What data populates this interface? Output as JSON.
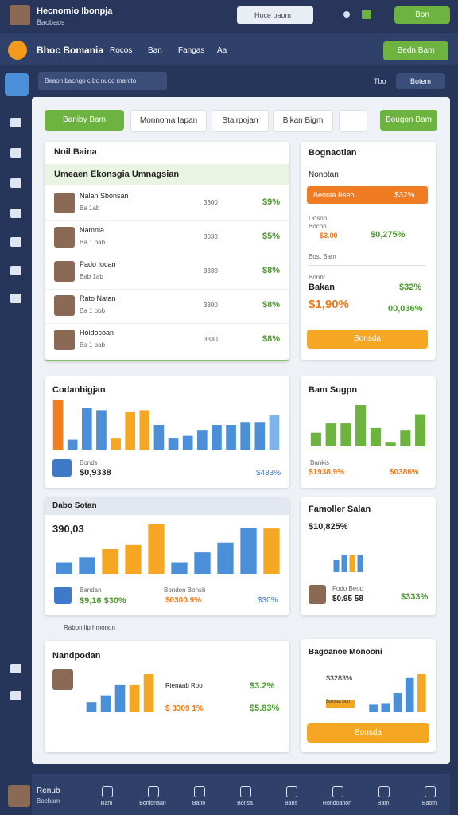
{
  "topbar": {
    "user_name": "Hecnomio Ibonpja",
    "user_role": "Baobaos",
    "search": "Hoce baom",
    "button": "Bon"
  },
  "navbar": {
    "brand": "Bhoc Bomania",
    "links": [
      "Rocos",
      "Ban",
      "Fangas",
      "Aa"
    ],
    "button": "Bedn Bam"
  },
  "toolbar": {
    "dropdown": "Beaon bacngo c bc nuod marcto",
    "link": "Tbo",
    "button": "Botem"
  },
  "tabs": [
    "Baniby Bam",
    "Monnoma Iapan",
    "Stairpojan",
    "Bikan Bigm",
    "Bougon Bam"
  ],
  "list_card": {
    "title": "Noil Baina",
    "subtitle": "Umeaen Ekonsgia Umnagsian",
    "rows": [
      {
        "name": "Nalan Sbonsan",
        "sub": "Ba 1ab",
        "amount": "3300",
        "percent": "$9%"
      },
      {
        "name": "Namnia",
        "sub": "Ba 1 bab",
        "amount": "3030",
        "percent": "$5%"
      },
      {
        "name": "Pado Iocan",
        "sub": "Bab 1ab",
        "amount": "3330",
        "percent": "$8%"
      },
      {
        "name": "Rato Natan",
        "sub": "Ba 1 bbb",
        "amount": "3300",
        "percent": "$8%"
      },
      {
        "name": "Hoidocoan",
        "sub": "Ba 1 bab",
        "amount": "3330",
        "percent": "$8%"
      }
    ]
  },
  "summary_card": {
    "title": "Bognaotian",
    "subtitle": "Nonotan",
    "banner": "Beonta Bseo",
    "banner_value": "$32%",
    "label_a": "Doson",
    "label_b": "Bocon",
    "value_a": "$3.00",
    "value_b": "$0,275%",
    "dropdown": "Bost Bam",
    "label_c": "Bonbr",
    "label_d": "Bakan",
    "value_c": "$32%",
    "value_d": "$1,90%",
    "value_e": "00,036%",
    "button": "Bonsda"
  },
  "cards": [
    {
      "title": "Codanbigjan",
      "footer_label": "Bonds",
      "footer_value": "$0,9338",
      "footer_right": "$483%",
      "chart": {
        "type": "bar",
        "values": [
          50,
          10,
          42,
          40,
          12,
          38,
          40,
          25,
          12,
          14,
          20,
          25,
          25,
          28,
          28,
          35
        ],
        "colors": [
          "#f07f1f",
          "#4a8fd8",
          "#4a8fd8",
          "#4a8fd8",
          "#f5a623",
          "#f5a623",
          "#f5a623",
          "#4a8fd8",
          "#4a8fd8",
          "#4a8fd8",
          "#4a8fd8",
          "#4a8fd8",
          "#4a8fd8",
          "#4a8fd8",
          "#4a8fd8",
          "#7fb3ea"
        ]
      }
    },
    {
      "title": "Bam Sugpn",
      "footer_label": "Bankis",
      "footer_value": "$1938,9%",
      "footer_right": "$0386%",
      "chart": {
        "type": "bar",
        "values": [
          15,
          25,
          25,
          45,
          20,
          5,
          18,
          35
        ],
        "colors": [
          "#6cb33f",
          "#6cb33f",
          "#6cb33f",
          "#6cb33f",
          "#6cb33f",
          "#6cb33f",
          "#6cb33f",
          "#6cb33f"
        ]
      }
    },
    {
      "title": "Dabo Sotan",
      "headline": "390,03",
      "footer_label": "Bandan",
      "footer_value": "$9,16 $30%",
      "footer_label_b": "Bondon Bonsb",
      "footer_value_b": "$0300.9%",
      "footer_right": "$30%",
      "chart": {
        "type": "bar",
        "values": [
          14,
          20,
          30,
          35,
          60,
          14,
          26,
          38,
          56,
          55
        ],
        "colors": [
          "#4a8fd8",
          "#4a8fd8",
          "#f5a623",
          "#f5a623",
          "#f5a623",
          "#4a8fd8",
          "#4a8fd8",
          "#4a8fd8",
          "#4a8fd8",
          "#f5a623"
        ]
      }
    },
    {
      "title": "Famoller Salan",
      "headline": "$10,825%",
      "footer_label": "Fodo Beod",
      "footer_value": "$0.95 58",
      "footer_right": "$333%",
      "chart": {
        "type": "bar",
        "values": [
          10,
          14,
          14,
          14
        ],
        "colors": [
          "#4a8fd8",
          "#4a8fd8",
          "#f5a623",
          "#4a8fd8"
        ]
      }
    },
    {
      "title": "Nandpodan",
      "row_a": "Rienaab Roo",
      "row_a_value": "$3.2%",
      "row_b": "$ 3309 1%",
      "row_b_value": "$5.83%",
      "chart": {
        "type": "bar",
        "values": [
          12,
          20,
          32,
          32,
          45
        ],
        "colors": [
          "#4a8fd8",
          "#4a8fd8",
          "#4a8fd8",
          "#f5a623",
          "#f5a623"
        ]
      }
    },
    {
      "title": "Bagoanoe Monooni",
      "headline": "$3283%",
      "tag": "Bonsta bon",
      "button": "Bonsda",
      "chart": {
        "type": "bar",
        "values": [
          10,
          12,
          25,
          45,
          50
        ],
        "colors": [
          "#4a8fd8",
          "#4a8fd8",
          "#4a8fd8",
          "#4a8fd8",
          "#f5a623"
        ]
      }
    }
  ],
  "section_note": "Rabon lip hmonon",
  "bottom_nav": {
    "user_name": "Renub",
    "user_role": "Bocbam",
    "items": [
      "Bam",
      "Bonidnaan",
      "Bann",
      "Bonsa",
      "Bans",
      "Rondoanon",
      "Bam",
      "Baom"
    ]
  }
}
